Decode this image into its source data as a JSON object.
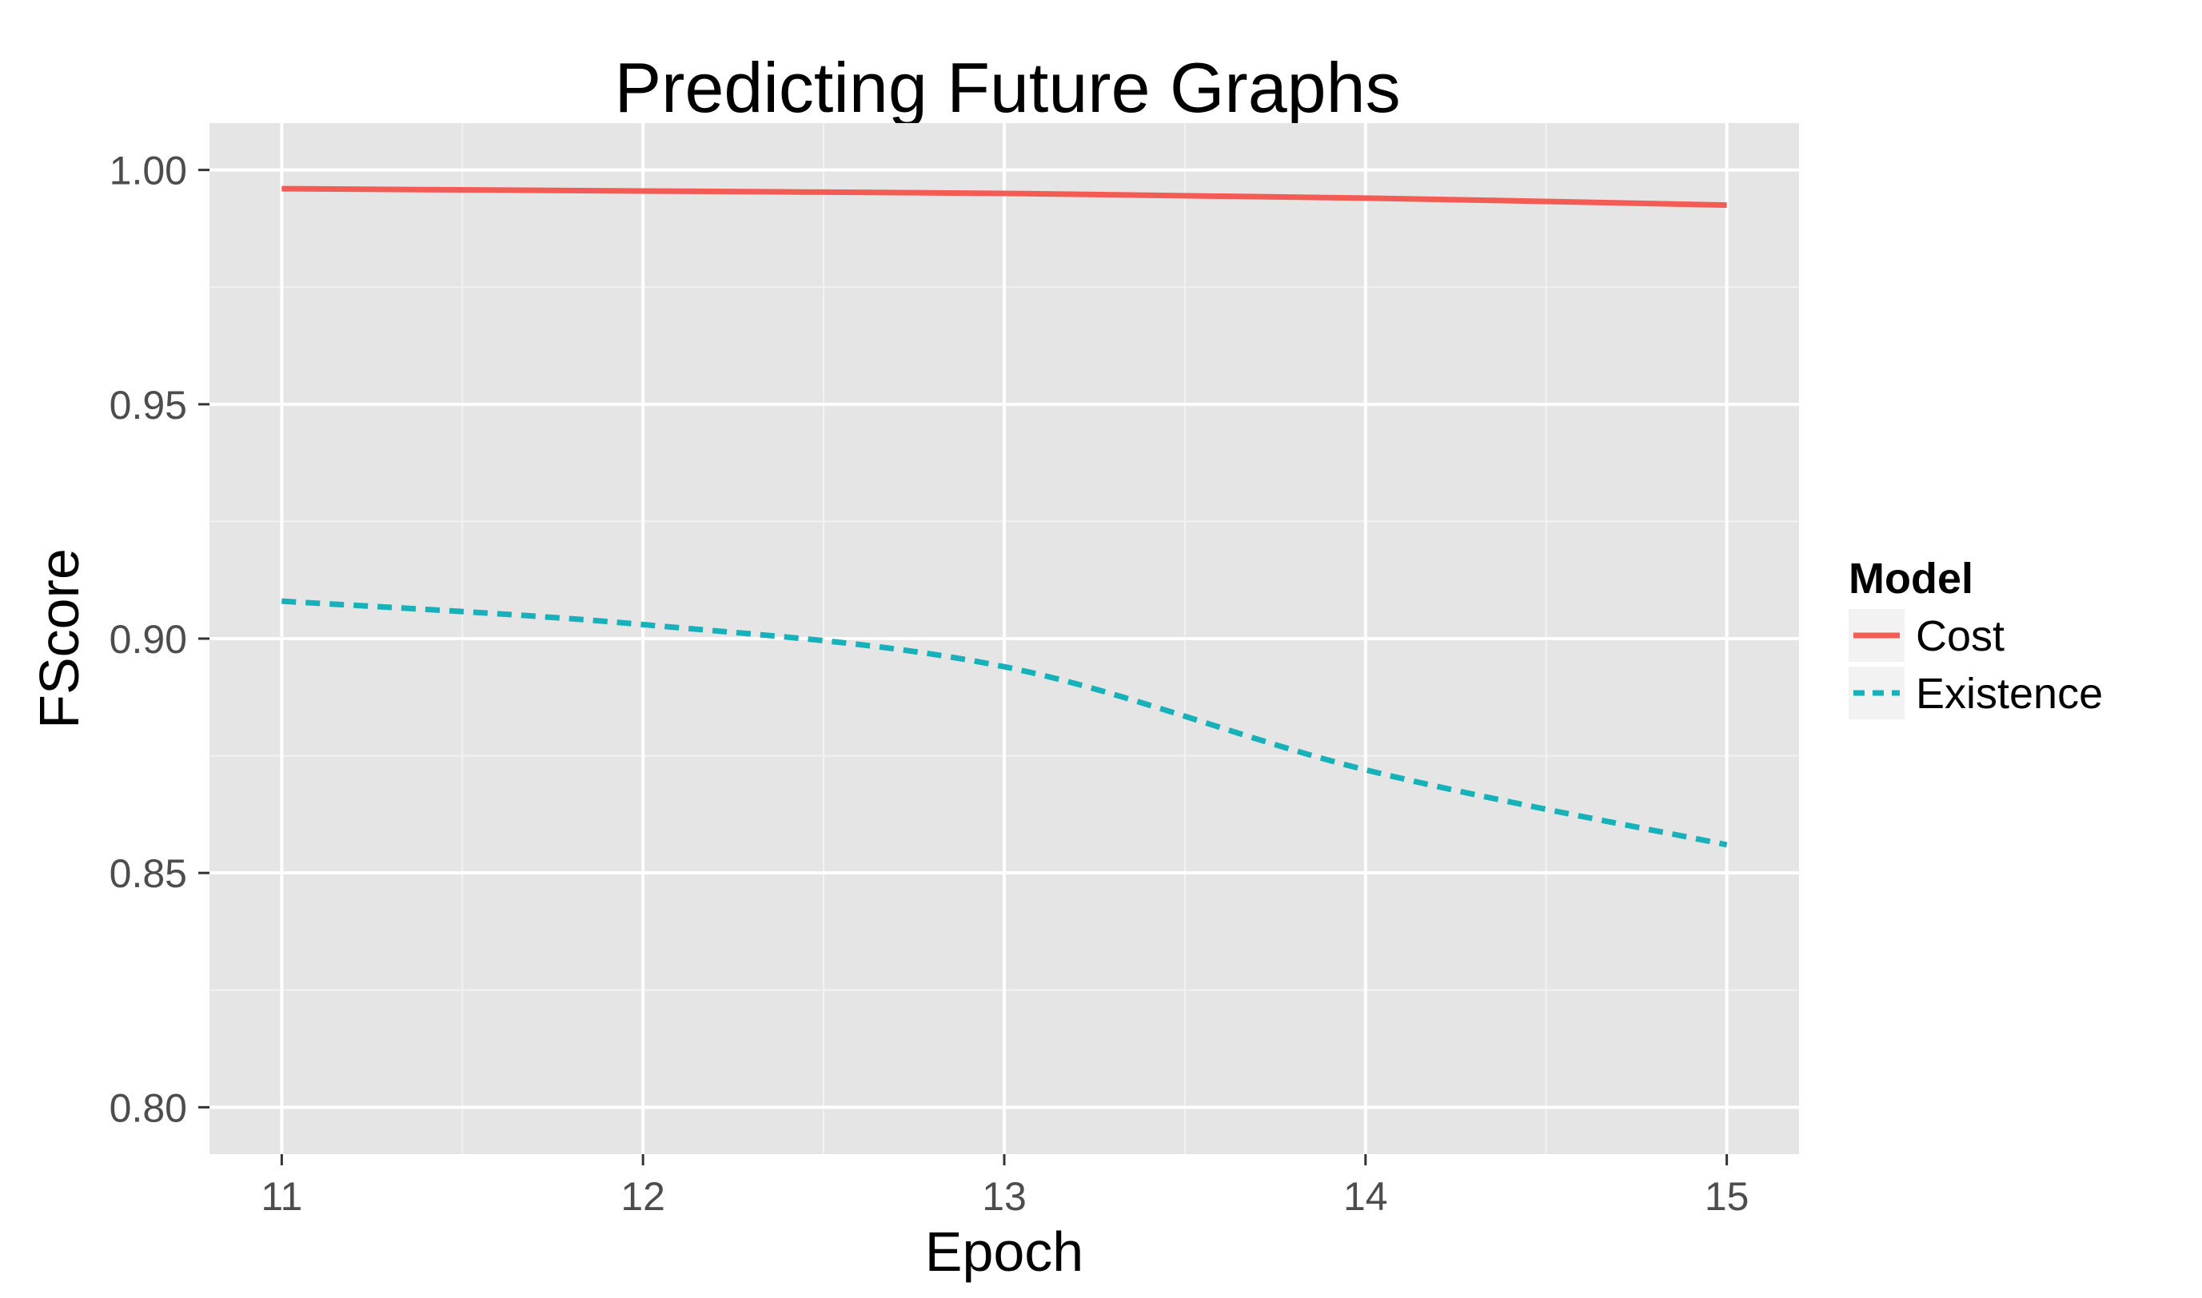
{
  "chart_data": {
    "type": "line",
    "title": "Predicting Future Graphs",
    "xlabel": "Epoch",
    "ylabel": "FScore",
    "x": [
      11,
      12,
      13,
      14,
      15
    ],
    "xlim": [
      10.8,
      15.2
    ],
    "ylim": [
      0.79,
      1.01
    ],
    "x_ticks": [
      11,
      12,
      13,
      14,
      15
    ],
    "x_tick_labels": [
      "11",
      "12",
      "13",
      "14",
      "15"
    ],
    "y_ticks": [
      0.8,
      0.85,
      0.9,
      0.95,
      1.0
    ],
    "y_tick_labels": [
      "0.80",
      "0.85",
      "0.90",
      "0.95",
      "1.00"
    ],
    "grid": true,
    "legend": {
      "title": "Model",
      "position": "right"
    },
    "series": [
      {
        "name": "Cost",
        "color": "#f25c54",
        "linestyle": "solid",
        "values": [
          0.996,
          0.9955,
          0.995,
          0.994,
          0.9925
        ]
      },
      {
        "name": "Existence",
        "color": "#17b1b9",
        "linestyle": "dashed",
        "values": [
          0.908,
          0.903,
          0.894,
          0.872,
          0.856
        ]
      }
    ]
  }
}
